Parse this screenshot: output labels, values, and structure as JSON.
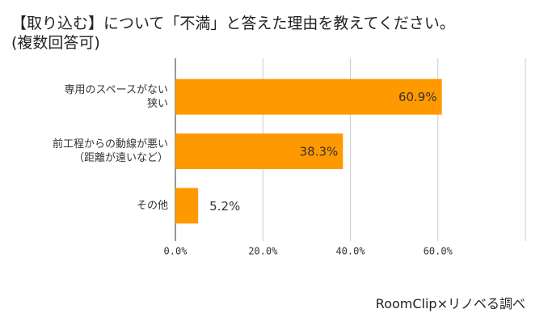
{
  "chart_data": {
    "type": "barh",
    "title": "【取り込む】について「不満」と答えた理由を教えてください。",
    "subtitle": "(複数回答可)",
    "categories": [
      "専用のスペースがない\n狭い",
      "前工程からの動線が悪い\n（距離が遠いなど）",
      "その他"
    ],
    "values": [
      60.9,
      38.3,
      5.2
    ],
    "value_labels": [
      "60.9%",
      "38.3%",
      "5.2%"
    ],
    "color": "#ff9900",
    "xlim": [
      0,
      80
    ],
    "xticks": [
      {
        "value": 0,
        "label": "0.0%"
      },
      {
        "value": 20,
        "label": "20.0%"
      },
      {
        "value": 40,
        "label": "40.0%"
      },
      {
        "value": 60,
        "label": "60.0%"
      }
    ],
    "grid": true,
    "source": "RoomClip×リノベる調べ"
  }
}
